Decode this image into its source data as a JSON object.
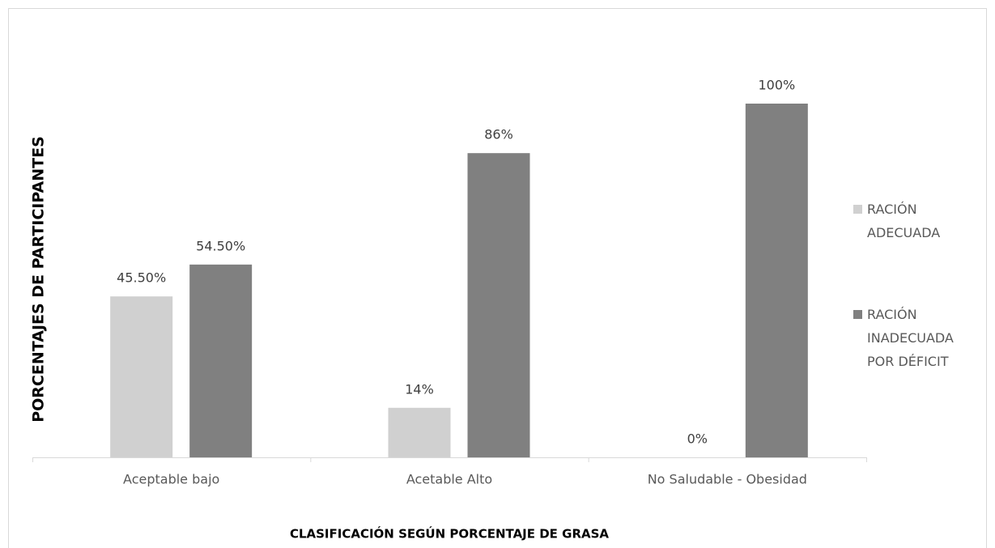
{
  "chart_data": {
    "type": "bar",
    "categories": [
      "Aceptable bajo",
      "Acetable Alto",
      "No Saludable - Obesidad"
    ],
    "series": [
      {
        "name": "RACIÓN ADECUADA",
        "color": "#d0d0d0",
        "values": [
          45.5,
          14,
          0
        ],
        "value_labels": [
          "45.50%",
          "14%",
          "0%"
        ]
      },
      {
        "name": "RACIÓN INADECUADA POR DÉFICIT",
        "color": "#808080",
        "values": [
          54.5,
          86,
          100
        ],
        "value_labels": [
          "54.50%",
          "86%",
          "100%"
        ]
      }
    ],
    "ylim": [
      0,
      100
    ],
    "ylabel": "PORCENTAJES DE PARTICIPANTES",
    "xlabel": "CLASIFICACIÓN SEGÚN PORCENTAJE DE GRASA",
    "legend": "right"
  }
}
